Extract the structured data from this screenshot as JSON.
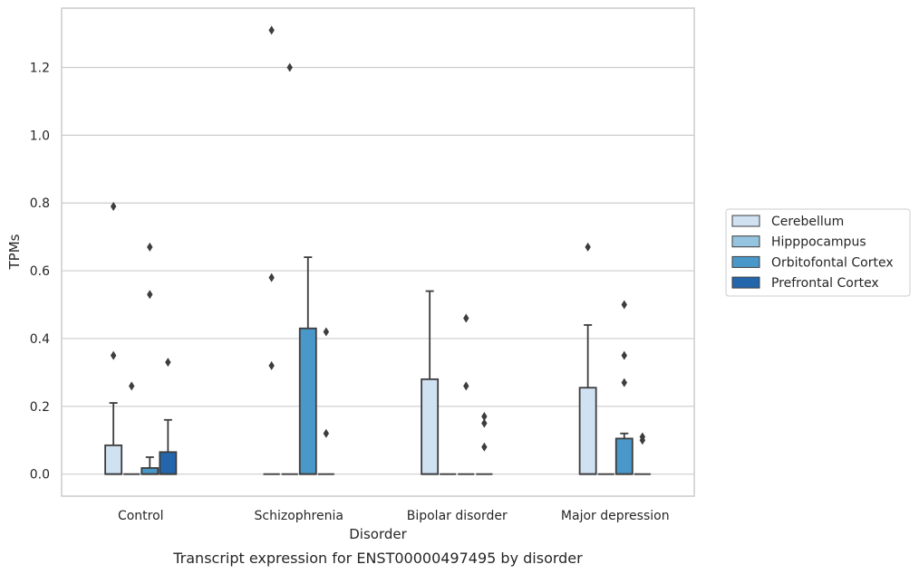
{
  "chart_data": {
    "type": "box",
    "caption": "Transcript expression for ENST00000497495 by disorder",
    "xlabel": "Disorder",
    "ylabel": "TPMs",
    "ylim": [
      -0.065,
      1.375
    ],
    "yticks": [
      0.0,
      0.2,
      0.4,
      0.6,
      0.8,
      1.0,
      1.2
    ],
    "ytick_labels": [
      "0.0",
      "0.2",
      "0.4",
      "0.6",
      "0.8",
      "1.0",
      "1.2"
    ],
    "grid": "horizontal",
    "legend_position": "right",
    "categories": [
      "Control",
      "Schizophrenia",
      "Bipolar disorder",
      "Major depression"
    ],
    "series": [
      {
        "name": "Cerebellum",
        "color": "#d0e1f2",
        "boxes": [
          {
            "q1": 0.0,
            "median": 0.0,
            "q3": 0.085,
            "whisker_low": 0.0,
            "whisker_high": 0.21,
            "outliers": [
              0.79,
              0.35
            ]
          },
          {
            "q1": 0.0,
            "median": 0.0,
            "q3": 0.0,
            "whisker_low": 0.0,
            "whisker_high": 0.0,
            "outliers": [
              1.31,
              0.58,
              0.32
            ]
          },
          {
            "q1": 0.0,
            "median": 0.0,
            "q3": 0.28,
            "whisker_low": 0.0,
            "whisker_high": 0.54,
            "outliers": []
          },
          {
            "q1": 0.0,
            "median": 0.0,
            "q3": 0.255,
            "whisker_low": 0.0,
            "whisker_high": 0.44,
            "outliers": [
              0.67
            ]
          }
        ]
      },
      {
        "name": "Hipppocampus",
        "color": "#94c4df",
        "boxes": [
          {
            "q1": 0.0,
            "median": 0.0,
            "q3": 0.0,
            "whisker_low": 0.0,
            "whisker_high": 0.0,
            "outliers": [
              0.26
            ]
          },
          {
            "q1": 0.0,
            "median": 0.0,
            "q3": 0.0,
            "whisker_low": 0.0,
            "whisker_high": 0.0,
            "outliers": [
              1.2
            ]
          },
          {
            "q1": 0.0,
            "median": 0.0,
            "q3": 0.0,
            "whisker_low": 0.0,
            "whisker_high": 0.0,
            "outliers": []
          },
          {
            "q1": 0.0,
            "median": 0.0,
            "q3": 0.0,
            "whisker_low": 0.0,
            "whisker_high": 0.0,
            "outliers": []
          }
        ]
      },
      {
        "name": "Orbitofontal Cortex",
        "color": "#4a98c9",
        "boxes": [
          {
            "q1": 0.0,
            "median": 0.0,
            "q3": 0.018,
            "whisker_low": 0.0,
            "whisker_high": 0.05,
            "outliers": [
              0.67,
              0.53
            ]
          },
          {
            "q1": 0.0,
            "median": 0.0,
            "q3": 0.43,
            "whisker_low": 0.0,
            "whisker_high": 0.64,
            "outliers": []
          },
          {
            "q1": 0.0,
            "median": 0.0,
            "q3": 0.0,
            "whisker_low": 0.0,
            "whisker_high": 0.0,
            "outliers": [
              0.46,
              0.26
            ]
          },
          {
            "q1": 0.0,
            "median": 0.0,
            "q3": 0.105,
            "whisker_low": 0.0,
            "whisker_high": 0.12,
            "outliers": [
              0.5,
              0.35,
              0.27
            ]
          }
        ]
      },
      {
        "name": "Prefrontal Cortex",
        "color": "#2366ac",
        "boxes": [
          {
            "q1": 0.0,
            "median": 0.0,
            "q3": 0.065,
            "whisker_low": 0.0,
            "whisker_high": 0.16,
            "outliers": [
              0.33
            ]
          },
          {
            "q1": 0.0,
            "median": 0.0,
            "q3": 0.0,
            "whisker_low": 0.0,
            "whisker_high": 0.0,
            "outliers": [
              0.42,
              0.12
            ]
          },
          {
            "q1": 0.0,
            "median": 0.0,
            "q3": 0.0,
            "whisker_low": 0.0,
            "whisker_high": 0.0,
            "outliers": [
              0.17,
              0.15,
              0.08
            ]
          },
          {
            "q1": 0.0,
            "median": 0.0,
            "q3": 0.0,
            "whisker_low": 0.0,
            "whisker_high": 0.0,
            "outliers": [
              0.11,
              0.1
            ]
          }
        ]
      }
    ]
  }
}
